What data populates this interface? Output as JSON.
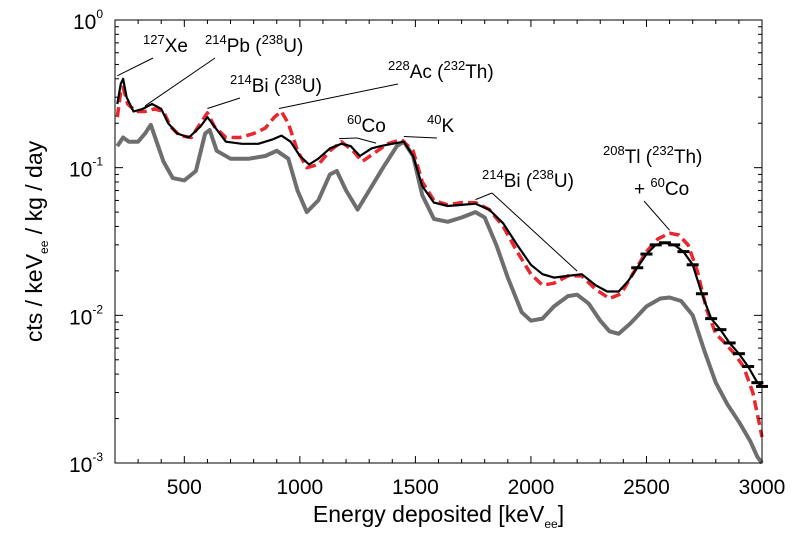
{
  "chart_data": {
    "type": "line",
    "title": "",
    "xlabel": {
      "main": "Energy deposited [keV",
      "sub": "ee",
      "close": "]"
    },
    "ylabel": {
      "main": "cts / keV",
      "sub": "ee",
      "rest": " / kg / day"
    },
    "xlim": [
      200,
      3000
    ],
    "ylim": [
      0.001,
      1
    ],
    "yscale": "log",
    "grid": false,
    "legend": "none",
    "x_ticks": [
      500,
      1000,
      1500,
      2000,
      2500,
      3000
    ],
    "x_tick_labels": [
      "500",
      "1000",
      "1500",
      "2000",
      "2500",
      "3000"
    ],
    "y_ticks": [
      0.001,
      0.01,
      0.1,
      1
    ],
    "y_tick_labels": [
      {
        "base": "10",
        "exp": "-3"
      },
      {
        "base": "10",
        "exp": "-2"
      },
      {
        "base": "10",
        "exp": "-1"
      },
      {
        "base": "10",
        "exp": "0"
      }
    ],
    "series": [
      {
        "style": "data-black",
        "color": "#000000",
        "points": [
          [
            210,
            0.27
          ],
          [
            225,
            0.37
          ],
          [
            235,
            0.4
          ],
          [
            250,
            0.3
          ],
          [
            280,
            0.24
          ],
          [
            320,
            0.25
          ],
          [
            360,
            0.27
          ],
          [
            400,
            0.25
          ],
          [
            430,
            0.2
          ],
          [
            470,
            0.17
          ],
          [
            520,
            0.16
          ],
          [
            570,
            0.19
          ],
          [
            600,
            0.22
          ],
          [
            630,
            0.19
          ],
          [
            680,
            0.15
          ],
          [
            750,
            0.145
          ],
          [
            820,
            0.145
          ],
          [
            880,
            0.155
          ],
          [
            920,
            0.165
          ],
          [
            960,
            0.15
          ],
          [
            1000,
            0.12
          ],
          [
            1040,
            0.105
          ],
          [
            1080,
            0.115
          ],
          [
            1130,
            0.135
          ],
          [
            1180,
            0.145
          ],
          [
            1220,
            0.14
          ],
          [
            1260,
            0.12
          ],
          [
            1310,
            0.135
          ],
          [
            1350,
            0.14
          ],
          [
            1400,
            0.145
          ],
          [
            1450,
            0.15
          ],
          [
            1490,
            0.12
          ],
          [
            1530,
            0.075
          ],
          [
            1580,
            0.058
          ],
          [
            1640,
            0.055
          ],
          [
            1700,
            0.056
          ],
          [
            1760,
            0.057
          ],
          [
            1820,
            0.052
          ],
          [
            1880,
            0.042
          ],
          [
            1940,
            0.03
          ],
          [
            2000,
            0.022
          ],
          [
            2050,
            0.019
          ],
          [
            2100,
            0.018
          ],
          [
            2160,
            0.0185
          ],
          [
            2220,
            0.019
          ],
          [
            2280,
            0.016
          ],
          [
            2330,
            0.0145
          ],
          [
            2380,
            0.0145
          ],
          [
            2420,
            0.017
          ],
          [
            2460,
            0.021
          ],
          [
            2500,
            0.026
          ],
          [
            2540,
            0.03
          ],
          [
            2580,
            0.031
          ],
          [
            2620,
            0.03
          ],
          [
            2660,
            0.027
          ],
          [
            2700,
            0.022
          ],
          [
            2740,
            0.014
          ],
          [
            2780,
            0.0095
          ],
          [
            2820,
            0.008
          ],
          [
            2860,
            0.0065
          ],
          [
            2900,
            0.0055
          ],
          [
            2940,
            0.0045
          ],
          [
            2980,
            0.0035
          ],
          [
            3000,
            0.0033
          ]
        ]
      },
      {
        "style": "model-red-dashed",
        "color": "#e8272f",
        "points": [
          [
            210,
            0.22
          ],
          [
            225,
            0.33
          ],
          [
            235,
            0.35
          ],
          [
            255,
            0.27
          ],
          [
            290,
            0.24
          ],
          [
            330,
            0.24
          ],
          [
            370,
            0.25
          ],
          [
            410,
            0.24
          ],
          [
            440,
            0.19
          ],
          [
            480,
            0.165
          ],
          [
            530,
            0.16
          ],
          [
            570,
            0.2
          ],
          [
            600,
            0.235
          ],
          [
            630,
            0.19
          ],
          [
            680,
            0.16
          ],
          [
            740,
            0.16
          ],
          [
            800,
            0.17
          ],
          [
            850,
            0.185
          ],
          [
            890,
            0.22
          ],
          [
            920,
            0.24
          ],
          [
            950,
            0.2
          ],
          [
            990,
            0.13
          ],
          [
            1030,
            0.1
          ],
          [
            1080,
            0.105
          ],
          [
            1130,
            0.13
          ],
          [
            1180,
            0.15
          ],
          [
            1230,
            0.13
          ],
          [
            1270,
            0.11
          ],
          [
            1320,
            0.125
          ],
          [
            1380,
            0.145
          ],
          [
            1440,
            0.155
          ],
          [
            1490,
            0.13
          ],
          [
            1530,
            0.08
          ],
          [
            1580,
            0.06
          ],
          [
            1640,
            0.056
          ],
          [
            1700,
            0.058
          ],
          [
            1760,
            0.058
          ],
          [
            1820,
            0.052
          ],
          [
            1880,
            0.04
          ],
          [
            1940,
            0.027
          ],
          [
            2000,
            0.019
          ],
          [
            2050,
            0.016
          ],
          [
            2100,
            0.0165
          ],
          [
            2160,
            0.0185
          ],
          [
            2220,
            0.0185
          ],
          [
            2280,
            0.015
          ],
          [
            2340,
            0.013
          ],
          [
            2390,
            0.014
          ],
          [
            2440,
            0.019
          ],
          [
            2500,
            0.027
          ],
          [
            2550,
            0.033
          ],
          [
            2600,
            0.036
          ],
          [
            2640,
            0.035
          ],
          [
            2680,
            0.03
          ],
          [
            2720,
            0.02
          ],
          [
            2760,
            0.011
          ],
          [
            2800,
            0.0075
          ],
          [
            2840,
            0.0065
          ],
          [
            2880,
            0.0055
          ],
          [
            2920,
            0.0045
          ],
          [
            2960,
            0.003
          ],
          [
            2990,
            0.0018
          ],
          [
            3000,
            0.0015
          ]
        ]
      },
      {
        "style": "model-gray",
        "color": "#6e6e6e",
        "points": [
          [
            210,
            0.14
          ],
          [
            235,
            0.16
          ],
          [
            260,
            0.15
          ],
          [
            300,
            0.15
          ],
          [
            330,
            0.17
          ],
          [
            355,
            0.195
          ],
          [
            380,
            0.15
          ],
          [
            410,
            0.11
          ],
          [
            450,
            0.085
          ],
          [
            500,
            0.082
          ],
          [
            550,
            0.095
          ],
          [
            590,
            0.17
          ],
          [
            610,
            0.18
          ],
          [
            640,
            0.13
          ],
          [
            700,
            0.115
          ],
          [
            780,
            0.115
          ],
          [
            850,
            0.12
          ],
          [
            900,
            0.13
          ],
          [
            950,
            0.115
          ],
          [
            990,
            0.07
          ],
          [
            1030,
            0.05
          ],
          [
            1080,
            0.06
          ],
          [
            1130,
            0.09
          ],
          [
            1160,
            0.095
          ],
          [
            1200,
            0.07
          ],
          [
            1250,
            0.052
          ],
          [
            1300,
            0.07
          ],
          [
            1360,
            0.1
          ],
          [
            1420,
            0.14
          ],
          [
            1450,
            0.15
          ],
          [
            1490,
            0.12
          ],
          [
            1530,
            0.065
          ],
          [
            1580,
            0.045
          ],
          [
            1640,
            0.043
          ],
          [
            1700,
            0.046
          ],
          [
            1760,
            0.05
          ],
          [
            1800,
            0.046
          ],
          [
            1850,
            0.03
          ],
          [
            1900,
            0.018
          ],
          [
            1960,
            0.0105
          ],
          [
            2000,
            0.0092
          ],
          [
            2050,
            0.0095
          ],
          [
            2100,
            0.0115
          ],
          [
            2160,
            0.0135
          ],
          [
            2200,
            0.0138
          ],
          [
            2250,
            0.012
          ],
          [
            2300,
            0.0092
          ],
          [
            2340,
            0.0078
          ],
          [
            2380,
            0.0075
          ],
          [
            2430,
            0.0088
          ],
          [
            2500,
            0.0115
          ],
          [
            2560,
            0.013
          ],
          [
            2600,
            0.0132
          ],
          [
            2650,
            0.0125
          ],
          [
            2700,
            0.01
          ],
          [
            2750,
            0.0058
          ],
          [
            2800,
            0.0035
          ],
          [
            2850,
            0.0025
          ],
          [
            2900,
            0.0019
          ],
          [
            2950,
            0.0014
          ],
          [
            2980,
            0.0011
          ],
          [
            3000,
            0.001
          ]
        ]
      }
    ],
    "annotations": [
      {
        "id": "xe127",
        "parts": [
          {
            "t": "127",
            "sup": true
          },
          {
            "t": "Xe",
            "sup": false
          }
        ],
        "anchor": [
          143,
          52
        ],
        "targets": [
          [
            210,
            0.4
          ]
        ]
      },
      {
        "id": "pb214",
        "parts": [
          {
            "t": "214",
            "sup": true
          },
          {
            "t": "Pb (",
            "sup": false
          },
          {
            "t": "238",
            "sup": true
          },
          {
            "t": "U)",
            "sup": false
          }
        ],
        "anchor": [
          205,
          52
        ],
        "targets": [
          [
            330,
            0.25
          ]
        ]
      },
      {
        "id": "bi214-low",
        "parts": [
          {
            "t": "214",
            "sup": true
          },
          {
            "t": "Bi (",
            "sup": false
          },
          {
            "t": "238",
            "sup": true
          },
          {
            "t": "U)",
            "sup": false
          }
        ],
        "anchor": [
          230,
          92
        ],
        "targets": [
          [
            600,
            0.24
          ]
        ]
      },
      {
        "id": "ac228",
        "parts": [
          {
            "t": "228",
            "sup": true
          },
          {
            "t": "Ac (",
            "sup": false
          },
          {
            "t": "232",
            "sup": true
          },
          {
            "t": "Th)",
            "sup": false
          }
        ],
        "anchor": [
          388,
          78
        ],
        "targets": [
          [
            910,
            0.24
          ]
        ]
      },
      {
        "id": "co60-low",
        "parts": [
          {
            "t": "60",
            "sup": true
          },
          {
            "t": "Co",
            "sup": false
          }
        ],
        "anchor": [
          347,
          132
        ],
        "targets": [
          [
            1170,
            0.15
          ],
          [
            1330,
            0.14
          ]
        ]
      },
      {
        "id": "k40",
        "parts": [
          {
            "t": "40",
            "sup": true
          },
          {
            "t": "K",
            "sup": false
          }
        ],
        "anchor": [
          427,
          132
        ],
        "targets": [
          [
            1450,
            0.155
          ]
        ]
      },
      {
        "id": "bi214-high",
        "parts": [
          {
            "t": "214",
            "sup": true
          },
          {
            "t": "Bi (",
            "sup": false
          },
          {
            "t": "238",
            "sup": true
          },
          {
            "t": "U)",
            "sup": false
          }
        ],
        "anchor": [
          482,
          187
        ],
        "targets": [
          [
            1760,
            0.058
          ],
          [
            2200,
            0.019
          ]
        ]
      },
      {
        "id": "tl208",
        "parts": [
          {
            "t": "208",
            "sup": true
          },
          {
            "t": "Tl (",
            "sup": false
          },
          {
            "t": "232",
            "sup": true
          },
          {
            "t": "Th)",
            "sup": false
          }
        ],
        "anchor": [
          603,
          163
        ],
        "targets": []
      },
      {
        "id": "co60-high",
        "parts": [
          {
            "t": "+ ",
            "sup": false
          },
          {
            "t": "60",
            "sup": true
          },
          {
            "t": "Co",
            "sup": false
          }
        ],
        "anchor": [
          634,
          195
        ],
        "targets": [
          [
            2600,
            0.036
          ]
        ]
      }
    ]
  }
}
